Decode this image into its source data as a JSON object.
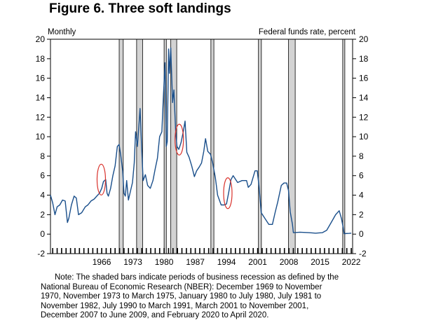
{
  "chart_data": {
    "type": "line",
    "title": "Figure 6. Three soft landings",
    "left_label": "Monthly",
    "right_label": "Federal funds rate, percent",
    "series": [
      {
        "name": "Federal funds rate",
        "color": "#1a4f8b",
        "points": [
          [
            1954.5,
            4.0
          ],
          [
            1955.0,
            3.2
          ],
          [
            1955.5,
            2.0
          ],
          [
            1956.0,
            2.8
          ],
          [
            1956.6,
            3.0
          ],
          [
            1957.2,
            3.5
          ],
          [
            1957.8,
            3.4
          ],
          [
            1958.3,
            1.2
          ],
          [
            1958.6,
            1.6
          ],
          [
            1959.2,
            3.0
          ],
          [
            1959.8,
            3.9
          ],
          [
            1960.3,
            3.7
          ],
          [
            1960.8,
            2.0
          ],
          [
            1961.5,
            2.2
          ],
          [
            1962.3,
            2.8
          ],
          [
            1962.9,
            3.0
          ],
          [
            1963.6,
            3.4
          ],
          [
            1964.3,
            3.6
          ],
          [
            1964.9,
            3.9
          ],
          [
            1965.5,
            4.2
          ],
          [
            1966.0,
            4.7
          ],
          [
            1966.4,
            5.4
          ],
          [
            1966.9,
            5.6
          ],
          [
            1967.2,
            4.2
          ],
          [
            1967.5,
            3.9
          ],
          [
            1968.0,
            4.7
          ],
          [
            1968.5,
            6.0
          ],
          [
            1969.0,
            7.0
          ],
          [
            1969.5,
            9.0
          ],
          [
            1969.9,
            9.2
          ],
          [
            1970.3,
            8.0
          ],
          [
            1970.7,
            6.5
          ],
          [
            1971.0,
            4.2
          ],
          [
            1971.3,
            3.9
          ],
          [
            1971.6,
            5.5
          ],
          [
            1972.0,
            3.5
          ],
          [
            1972.5,
            4.5
          ],
          [
            1972.9,
            5.3
          ],
          [
            1973.3,
            7.3
          ],
          [
            1973.6,
            10.5
          ],
          [
            1974.0,
            9.0
          ],
          [
            1974.4,
            11.5
          ],
          [
            1974.6,
            12.9
          ],
          [
            1974.9,
            9.5
          ],
          [
            1975.3,
            5.5
          ],
          [
            1975.8,
            6.1
          ],
          [
            1976.3,
            5.0
          ],
          [
            1976.9,
            4.7
          ],
          [
            1977.5,
            5.5
          ],
          [
            1978.0,
            6.7
          ],
          [
            1978.5,
            7.8
          ],
          [
            1979.0,
            10.0
          ],
          [
            1979.5,
            10.5
          ],
          [
            1979.8,
            13.7
          ],
          [
            1980.2,
            17.6
          ],
          [
            1980.5,
            9.0
          ],
          [
            1980.7,
            9.5
          ],
          [
            1981.0,
            19.0
          ],
          [
            1981.2,
            16.5
          ],
          [
            1981.5,
            19.1
          ],
          [
            1981.9,
            13.5
          ],
          [
            1982.2,
            14.8
          ],
          [
            1982.6,
            10.5
          ],
          [
            1982.9,
            9.0
          ],
          [
            1983.3,
            8.7
          ],
          [
            1983.8,
            9.4
          ],
          [
            1984.3,
            10.5
          ],
          [
            1984.7,
            11.6
          ],
          [
            1985.1,
            8.4
          ],
          [
            1985.6,
            7.9
          ],
          [
            1986.2,
            7.0
          ],
          [
            1986.8,
            5.9
          ],
          [
            1987.3,
            6.5
          ],
          [
            1987.9,
            6.9
          ],
          [
            1988.4,
            7.3
          ],
          [
            1988.9,
            8.5
          ],
          [
            1989.3,
            9.8
          ],
          [
            1989.8,
            8.5
          ],
          [
            1990.4,
            8.2
          ],
          [
            1990.9,
            7.3
          ],
          [
            1991.5,
            5.8
          ],
          [
            1992.0,
            4.0
          ],
          [
            1992.8,
            3.0
          ],
          [
            1993.5,
            3.0
          ],
          [
            1994.0,
            3.1
          ],
          [
            1994.5,
            4.3
          ],
          [
            1995.0,
            5.6
          ],
          [
            1995.5,
            6.0
          ],
          [
            1996.5,
            5.3
          ],
          [
            1997.5,
            5.5
          ],
          [
            1998.5,
            5.5
          ],
          [
            1998.9,
            4.8
          ],
          [
            1999.5,
            5.1
          ],
          [
            2000.4,
            6.5
          ],
          [
            2000.9,
            6.5
          ],
          [
            2001.3,
            4.9
          ],
          [
            2001.8,
            2.2
          ],
          [
            2002.5,
            1.7
          ],
          [
            2003.5,
            1.0
          ],
          [
            2004.3,
            1.0
          ],
          [
            2004.9,
            2.2
          ],
          [
            2005.5,
            3.3
          ],
          [
            2006.3,
            5.0
          ],
          [
            2006.9,
            5.25
          ],
          [
            2007.5,
            5.25
          ],
          [
            2007.9,
            4.5
          ],
          [
            2008.3,
            2.3
          ],
          [
            2008.8,
            1.0
          ],
          [
            2009.0,
            0.15
          ],
          [
            2010.5,
            0.2
          ],
          [
            2012.5,
            0.15
          ],
          [
            2014.0,
            0.1
          ],
          [
            2015.5,
            0.15
          ],
          [
            2016.5,
            0.4
          ],
          [
            2017.5,
            1.2
          ],
          [
            2018.5,
            2.0
          ],
          [
            2019.3,
            2.4
          ],
          [
            2019.8,
            1.6
          ],
          [
            2020.2,
            0.6
          ],
          [
            2020.4,
            0.05
          ],
          [
            2021.5,
            0.08
          ],
          [
            2022.0,
            0.1
          ]
        ]
      }
    ],
    "recessions": [
      [
        1969.92,
        1970.83
      ],
      [
        1973.83,
        1975.17
      ],
      [
        1980.0,
        1980.5
      ],
      [
        1981.5,
        1982.83
      ],
      [
        1990.5,
        1991.17
      ],
      [
        2001.17,
        2001.83
      ],
      [
        2007.92,
        2009.42
      ],
      [
        2020.08,
        2020.25
      ]
    ],
    "soft_landing_markers": [
      {
        "x": 1965.9,
        "y": 5.6
      },
      {
        "x": 1983.4,
        "y": 9.7
      },
      {
        "x": 1994.3,
        "y": 4.2
      }
    ],
    "xlim": [
      1954.5,
      2022.3
    ],
    "ylim": [
      -2,
      20
    ],
    "yticks": [
      -2,
      0,
      2,
      4,
      6,
      8,
      10,
      12,
      14,
      16,
      18,
      20
    ],
    "xtick_labels": [
      {
        "year": 1966,
        "label": "1966"
      },
      {
        "year": 1973,
        "label": "1973"
      },
      {
        "year": 1980,
        "label": "1980"
      },
      {
        "year": 1987,
        "label": "1987"
      },
      {
        "year": 1994,
        "label": "1994"
      },
      {
        "year": 2001,
        "label": "2001"
      },
      {
        "year": 2008,
        "label": "2008"
      },
      {
        "year": 2015,
        "label": "2015"
      },
      {
        "year": 2022,
        "label": "2022"
      }
    ],
    "colors": {
      "line": "#1a4f8b",
      "recession_fill": "#d3d3d3",
      "marker": "#d9312b"
    }
  },
  "note": [
    "Note: The shaded bars indicate periods of business recession as defined by the",
    "National Bureau of Economic Research (NBER): December 1969 to November",
    "1970, November 1973 to March 1975, January 1980 to July 1980, July 1981 to",
    "November 1982, July 1990 to March 1991, March 2001 to November 2001,",
    "December 2007 to June 2009, and February 2020 to April 2020."
  ]
}
